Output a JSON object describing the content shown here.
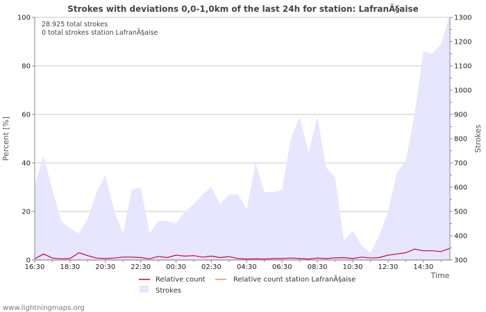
{
  "chart_data": {
    "type": "line",
    "title": "Strokes with deviations 0,0-1,0km of the last 24h for station: LafranÃ§aise",
    "ylabel_left": "Percent   [%]",
    "ylabel_right": "Strokes",
    "xlabel": "Time",
    "ylim_left": [
      0,
      100
    ],
    "ylim_right": [
      300,
      1300
    ],
    "yticks_left": [
      "0",
      "20",
      "40",
      "60",
      "80",
      "100"
    ],
    "yticks_right": [
      "300",
      "400",
      "500",
      "600",
      "700",
      "800",
      "900",
      "1000",
      "1100",
      "1200",
      "1300"
    ],
    "xtick_labels": [
      "16:30",
      "18:30",
      "20:30",
      "22:30",
      "00:30",
      "02:30",
      "04:30",
      "06:30",
      "08:30",
      "10:30",
      "12:30",
      "14:30"
    ],
    "annotations": [
      "28.925 total strokes",
      "0 total strokes station LafranÃ§aise"
    ],
    "legend": [
      "Relative count",
      "Relative count station LafranÃ§aise",
      "Strokes"
    ],
    "series": [
      {
        "name": "Strokes",
        "axis": "right",
        "color": "#e6e6ff",
        "values": [
          610,
          730,
          590,
          460,
          430,
          410,
          470,
          580,
          650,
          500,
          410,
          590,
          600,
          410,
          460,
          460,
          450,
          500,
          530,
          570,
          600,
          530,
          570,
          570,
          510,
          700,
          580,
          580,
          590,
          800,
          890,
          740,
          890,
          680,
          640,
          380,
          420,
          360,
          330,
          400,
          500,
          660,
          710,
          900,
          1160,
          1150,
          1190,
          1310
        ]
      },
      {
        "name": "Relative count",
        "axis": "left",
        "color": "#cc0033",
        "values": [
          0.5,
          2.5,
          0.8,
          0.5,
          0.6,
          3,
          1.8,
          0.8,
          0.6,
          0.8,
          1.2,
          1.2,
          1.0,
          0.5,
          1.5,
          1.0,
          2.0,
          1.6,
          1.8,
          1.2,
          1.6,
          1.0,
          1.4,
          0.6,
          0.4,
          0.5,
          0.4,
          0.6,
          0.6,
          0.8,
          0.6,
          0.4,
          0.8,
          0.6,
          0.9,
          1.0,
          0.6,
          1.2,
          0.8,
          1.0,
          2.0,
          2.5,
          3.0,
          4.5,
          3.8,
          3.8,
          3.5,
          4.8
        ]
      },
      {
        "name": "Relative count station LafranÃ§aise",
        "axis": "left",
        "color": "#ff8866",
        "values": [
          0,
          0,
          0,
          0,
          0,
          0,
          0,
          0,
          0,
          0,
          0,
          0,
          0,
          0,
          0,
          0,
          0,
          0,
          0,
          0,
          0,
          0,
          0,
          0,
          0,
          0,
          0,
          0,
          0,
          0,
          0,
          0,
          0,
          0,
          0,
          0,
          0,
          0,
          0,
          0,
          0,
          0,
          0,
          0,
          0,
          0,
          0,
          0
        ]
      }
    ]
  },
  "footer": "www.lightningmaps.org"
}
